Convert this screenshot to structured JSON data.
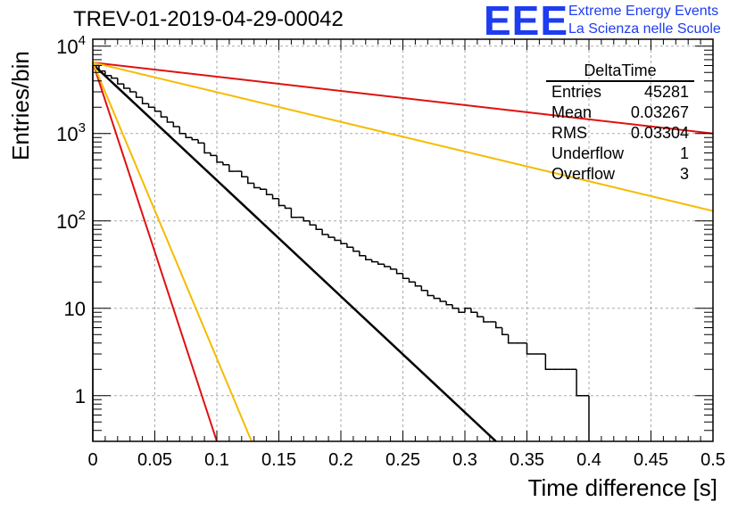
{
  "title": "TREV-01-2019-04-29-00042",
  "logo": {
    "text": "EEE",
    "line1": "Extreme Energy Events",
    "line2": "La Scienza nelle Scuole"
  },
  "stats": {
    "title": "DeltaTime",
    "rows": [
      {
        "label": "Entries",
        "value": "45281"
      },
      {
        "label": "Mean",
        "value": "0.03267"
      },
      {
        "label": "RMS",
        "value": "0.03304"
      },
      {
        "label": "Underflow",
        "value": "1"
      },
      {
        "label": "Overflow",
        "value": "3"
      }
    ]
  },
  "chart_data": {
    "type": "line",
    "xlabel": "Time difference [s]",
    "ylabel": "Entries/bin",
    "xlim": [
      0,
      0.5
    ],
    "ylim": [
      0.3,
      12000
    ],
    "yscale": "log",
    "grid": true,
    "x_ticks": [
      "0",
      "0.05",
      "0.1",
      "0.15",
      "0.2",
      "0.25",
      "0.3",
      "0.35",
      "0.4",
      "0.45",
      "0.5"
    ],
    "y_ticks": [
      {
        "value": 1,
        "base": "1",
        "exp": ""
      },
      {
        "value": 10,
        "base": "10",
        "exp": ""
      },
      {
        "value": 100,
        "base": "10",
        "exp": "2"
      },
      {
        "value": 1000,
        "base": "10",
        "exp": "3"
      },
      {
        "value": 10000,
        "base": "10",
        "exp": "4"
      }
    ],
    "histogram": {
      "color": "#000000",
      "bin_width": 0.005,
      "counts": [
        6000,
        5200,
        4600,
        4300,
        3700,
        3300,
        3000,
        2600,
        2200,
        2000,
        1800,
        1550,
        1350,
        1200,
        1000,
        900,
        850,
        780,
        600,
        560,
        470,
        440,
        370,
        370,
        320,
        270,
        240,
        230,
        200,
        180,
        150,
        140,
        110,
        110,
        100,
        90,
        80,
        70,
        65,
        60,
        55,
        50,
        45,
        40,
        36,
        34,
        32,
        30,
        28,
        25,
        22,
        20,
        18,
        16,
        14,
        13,
        12,
        11,
        10,
        9,
        10,
        9,
        8,
        7,
        7,
        6,
        5,
        4,
        4,
        4,
        3,
        3,
        3,
        2,
        2,
        2,
        2,
        2,
        1,
        1
      ]
    },
    "series": [
      {
        "color": "#000000",
        "points": [
          [
            0,
            6200
          ],
          [
            0.325,
            0.3
          ]
        ]
      },
      {
        "color": "#e01010",
        "points": [
          [
            0,
            6500
          ],
          [
            0.5,
            1000
          ]
        ]
      },
      {
        "color": "#e01010",
        "points": [
          [
            0,
            6500
          ],
          [
            0.1,
            0.3
          ]
        ]
      },
      {
        "color": "#f5bb00",
        "points": [
          [
            0,
            6500
          ],
          [
            0.5,
            130
          ]
        ]
      },
      {
        "color": "#f5bb00",
        "points": [
          [
            0,
            6500
          ],
          [
            0.128,
            0.3
          ]
        ]
      }
    ]
  }
}
